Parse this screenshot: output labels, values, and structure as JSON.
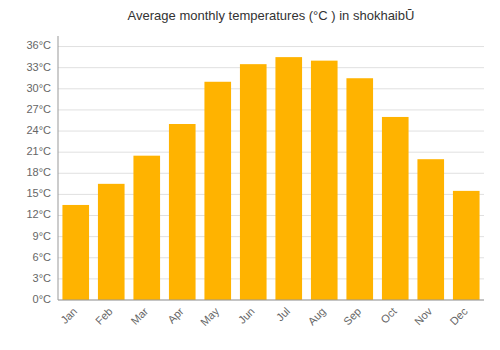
{
  "chart_data": {
    "type": "bar",
    "title": "Average monthly temperatures (°C ) in shokhaibŪ",
    "categories": [
      "Jan",
      "Feb",
      "Mar",
      "Apr",
      "May",
      "Jun",
      "Jul",
      "Aug",
      "Sep",
      "Oct",
      "Nov",
      "Dec"
    ],
    "values": [
      13.5,
      16.5,
      20.5,
      25.0,
      31.0,
      33.5,
      34.5,
      34.0,
      31.5,
      26.0,
      20.0,
      15.5
    ],
    "color": "#FFB300",
    "ylim": [
      0,
      37.5
    ],
    "yticks": [
      {
        "value": 0,
        "label": "0°C"
      },
      {
        "value": 3,
        "label": "3°C"
      },
      {
        "value": 6,
        "label": "6°C"
      },
      {
        "value": 9,
        "label": "9°C"
      },
      {
        "value": 12,
        "label": "12°C"
      },
      {
        "value": 15,
        "label": "15°C"
      },
      {
        "value": 18,
        "label": "18°C"
      },
      {
        "value": 21,
        "label": "21°C"
      },
      {
        "value": 24,
        "label": "24°C"
      },
      {
        "value": 27,
        "label": "27°C"
      },
      {
        "value": 30,
        "label": "30°C"
      },
      {
        "value": 33,
        "label": "33°C"
      },
      {
        "value": 36,
        "label": "36°C"
      }
    ],
    "grid": true
  }
}
